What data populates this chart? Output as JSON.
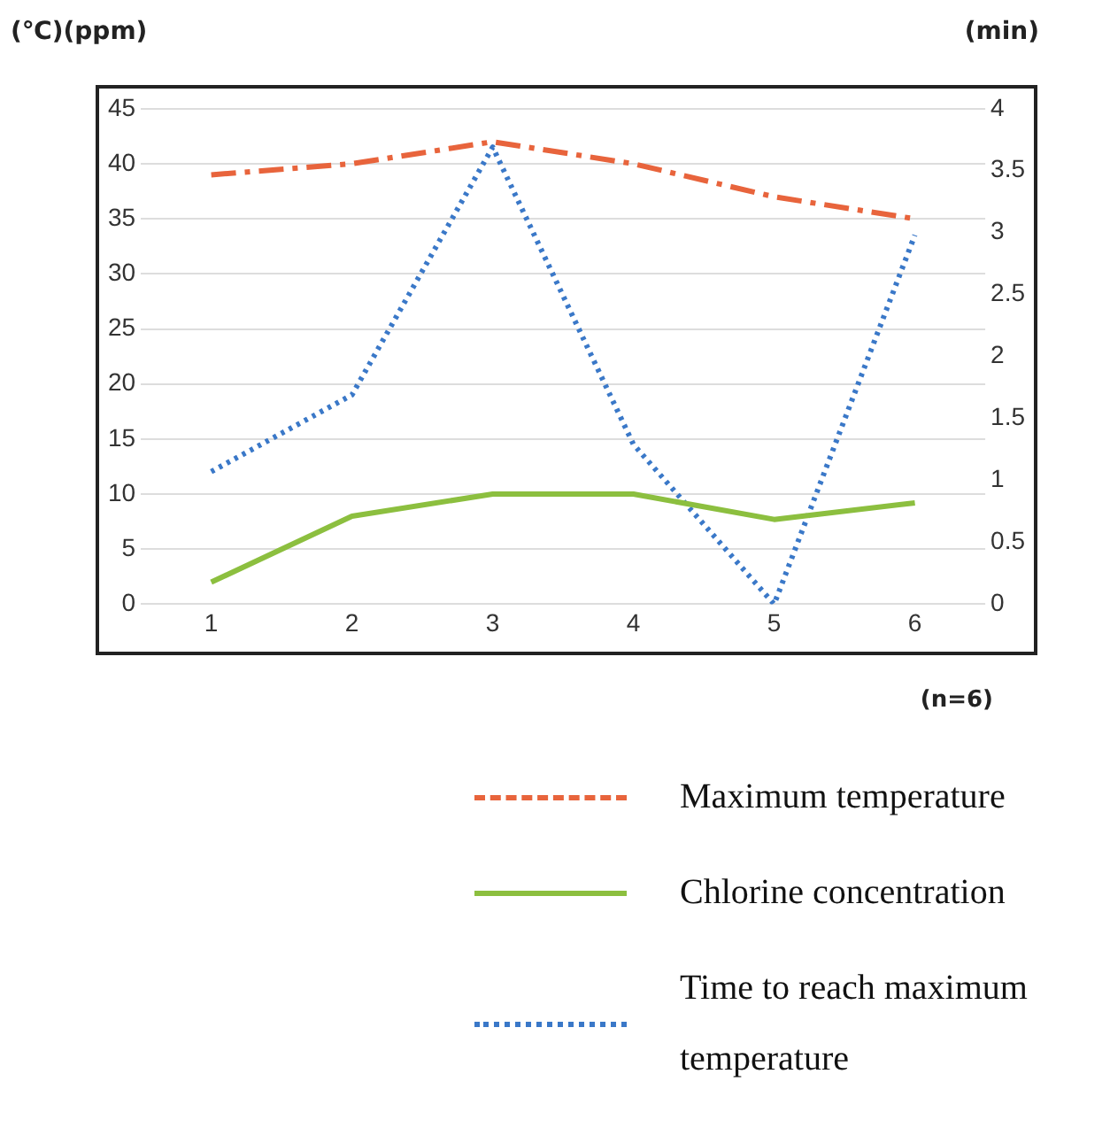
{
  "chart_data": {
    "type": "line",
    "ylabel": "(℃)(ppm)",
    "y2label": "(min)",
    "categories": [
      "1",
      "2",
      "3",
      "4",
      "5",
      "6"
    ],
    "series": [
      {
        "name": "Maximum temperature",
        "color": "#e8643c",
        "line_style": "dashed",
        "values": [
          39,
          40,
          42,
          40,
          37,
          35
        ]
      },
      {
        "name": "Chlorine concentration",
        "color": "#8cbf3f",
        "line_style": "solid",
        "values": [
          2,
          8,
          10,
          10,
          7.7,
          9.2
        ]
      },
      {
        "name": "Time to reach maximum temperature",
        "color": "#3a78c8",
        "line_style": "dotted",
        "axis": "y2",
        "values": [
          1.07,
          1.69,
          3.69,
          1.29,
          0,
          2.98
        ]
      }
    ],
    "ylim": [
      0,
      45
    ],
    "yticks": [
      0,
      5,
      10,
      15,
      20,
      25,
      30,
      35,
      40,
      45
    ],
    "y2lim": [
      0,
      4
    ],
    "y2ticks": [
      0,
      0.5,
      1,
      1.5,
      2,
      2.5,
      3,
      3.5,
      4
    ],
    "grid": "y",
    "legend": "bottom",
    "marker": "none",
    "annotations": [
      "(n=6)"
    ]
  }
}
